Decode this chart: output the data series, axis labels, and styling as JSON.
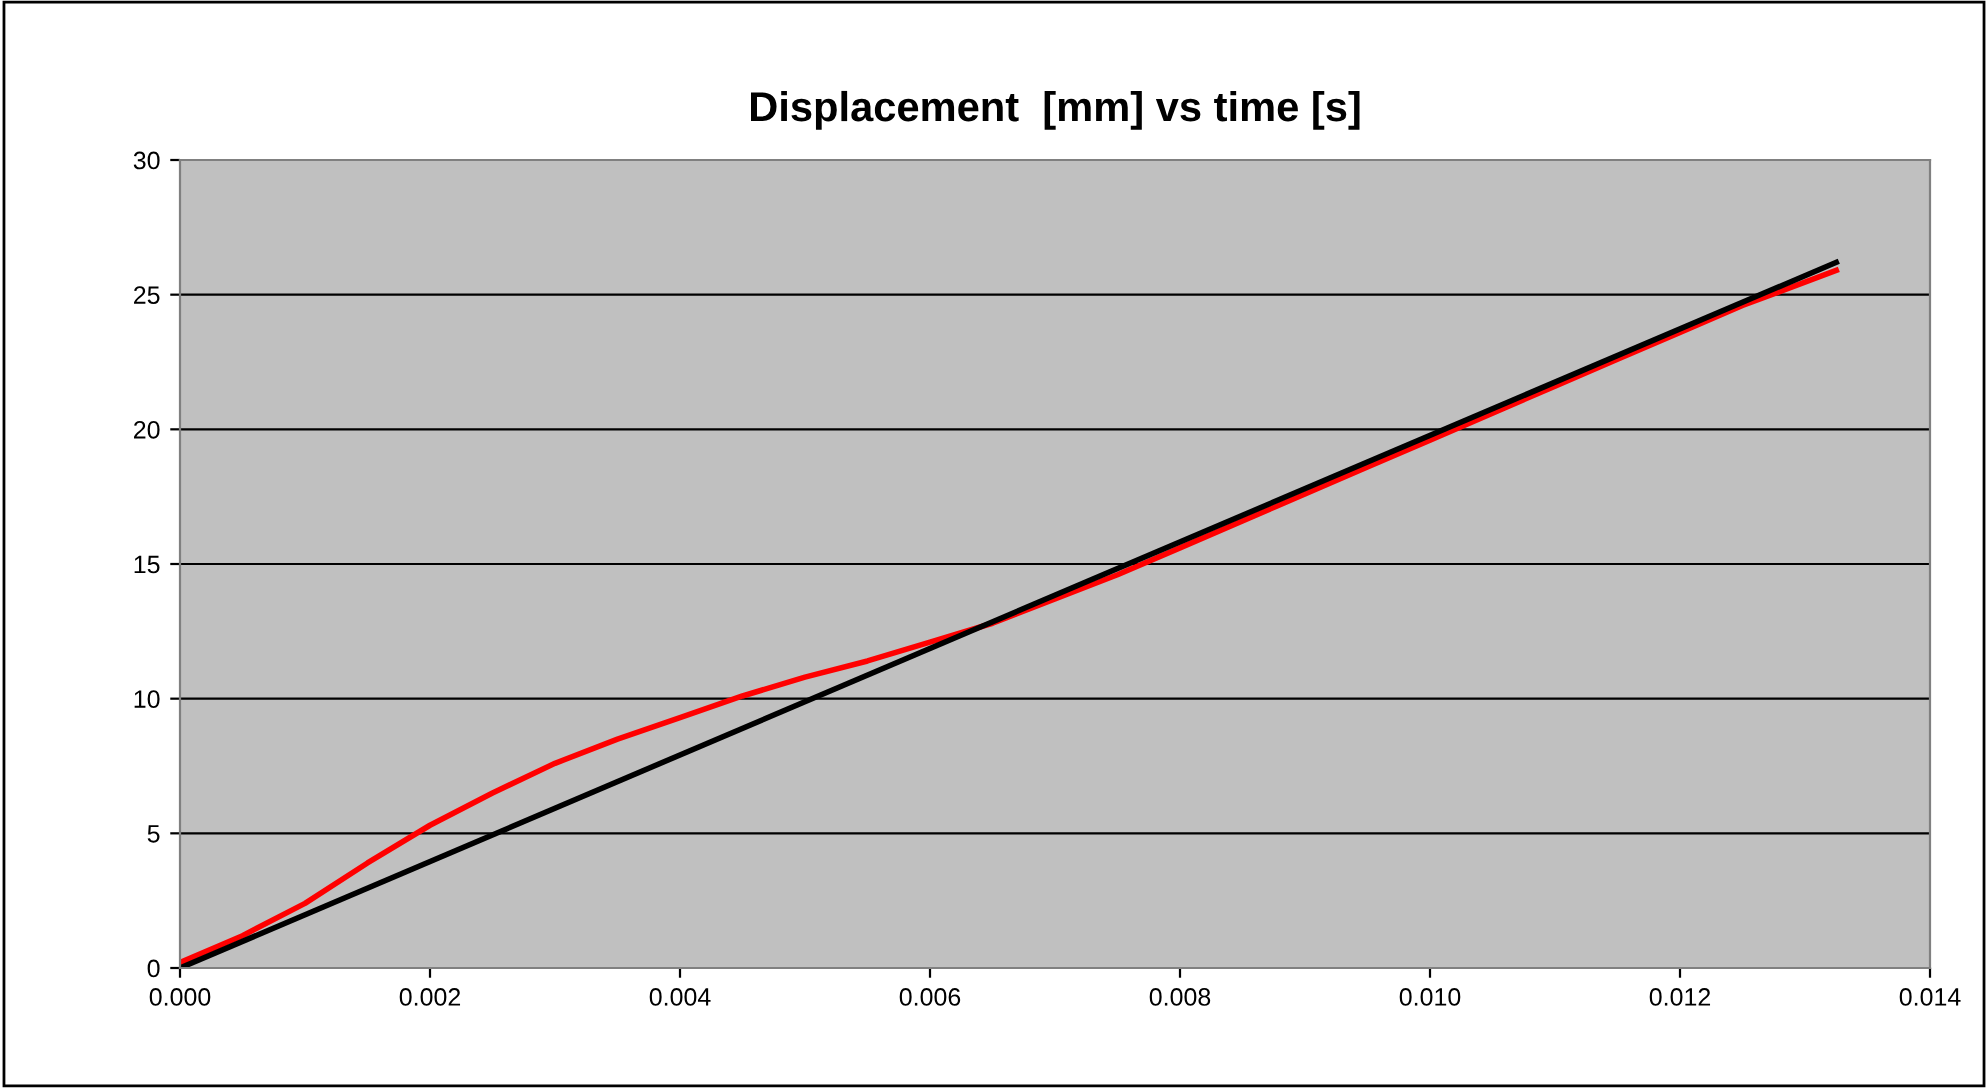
{
  "chart_data": {
    "type": "line",
    "title": "Displacement  [mm] vs time [s]",
    "xlim": [
      0,
      0.014
    ],
    "xticks": [
      {
        "value": 0,
        "label": "0.000"
      },
      {
        "value": 0.002,
        "label": "0.002"
      },
      {
        "value": 0.004,
        "label": "0.004"
      },
      {
        "value": 0.006,
        "label": "0.006"
      },
      {
        "value": 0.008,
        "label": "0.008"
      },
      {
        "value": 0.01,
        "label": "0.010"
      },
      {
        "value": 0.012,
        "label": "0.012"
      },
      {
        "value": 0.014,
        "label": "0.014"
      }
    ],
    "ylim": [
      0,
      30
    ],
    "yticks": [
      0,
      5,
      10,
      15,
      20,
      25,
      30
    ],
    "grid": "y",
    "series": [
      {
        "color": "#ff0000",
        "x": [
          0,
          0.0005,
          0.001,
          0.0015,
          0.002,
          0.0025,
          0.003,
          0.0035,
          0.004,
          0.0045,
          0.005,
          0.0055,
          0.006,
          0.0065,
          0.007,
          0.0075,
          0.008,
          0.0085,
          0.009,
          0.0095,
          0.01,
          0.0105,
          0.011,
          0.0115,
          0.012,
          0.0125,
          0.01325
        ],
        "values": [
          0.2,
          1.2,
          2.4,
          3.9,
          5.3,
          6.5,
          7.6,
          8.5,
          9.3,
          10.1,
          10.8,
          11.4,
          12.1,
          12.8,
          13.7,
          14.6,
          15.6,
          16.6,
          17.6,
          18.6,
          19.6,
          20.6,
          21.6,
          22.6,
          23.6,
          24.6,
          25.9
        ]
      },
      {
        "color": "#000000",
        "x": [
          0,
          0.01325
        ],
        "values": [
          0,
          26.2
        ]
      }
    ]
  }
}
